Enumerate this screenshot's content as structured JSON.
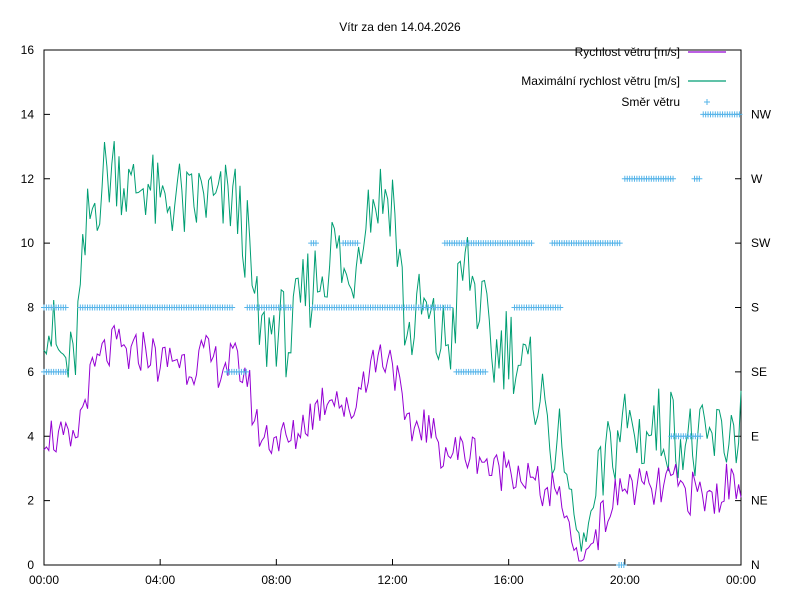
{
  "chart_data": {
    "type": "line",
    "title": "Vítr za den 14.04.2026",
    "xlim_hours": [
      0,
      24
    ],
    "x_ticks": [
      {
        "value": 0,
        "label": "00:00"
      },
      {
        "value": 4,
        "label": "04:00"
      },
      {
        "value": 8,
        "label": "08:00"
      },
      {
        "value": 12,
        "label": "12:00"
      },
      {
        "value": 16,
        "label": "16:00"
      },
      {
        "value": 20,
        "label": "20:00"
      },
      {
        "value": 24,
        "label": "00:00"
      }
    ],
    "ylim": [
      0,
      16
    ],
    "y_ticks": [
      0,
      2,
      4,
      6,
      8,
      10,
      12,
      14,
      16
    ],
    "y2_ticks": [
      {
        "value": 0,
        "label": "N"
      },
      {
        "value": 2,
        "label": "NE"
      },
      {
        "value": 4,
        "label": "E"
      },
      {
        "value": 6,
        "label": "SE"
      },
      {
        "value": 8,
        "label": "S"
      },
      {
        "value": 10,
        "label": "SW"
      },
      {
        "value": 12,
        "label": "W"
      },
      {
        "value": 14,
        "label": "NW"
      }
    ],
    "legend_position": "top-right",
    "colors": {
      "speed": "#9400d3",
      "max_speed": "#009e73",
      "direction": "#56b4e9"
    },
    "series": [
      {
        "name": "Rychlost větru [m/s]",
        "key": "speed",
        "kind": "line",
        "x": [
          0.0,
          0.5,
          1.0,
          1.5,
          2.0,
          2.5,
          3.0,
          3.5,
          4.0,
          4.5,
          5.0,
          5.5,
          6.0,
          6.5,
          7.0,
          7.25,
          7.5,
          8.0,
          8.5,
          9.0,
          9.5,
          10.0,
          10.5,
          11.0,
          11.5,
          12.0,
          12.5,
          13.0,
          13.5,
          14.0,
          14.5,
          15.0,
          15.5,
          16.0,
          16.5,
          17.0,
          17.5,
          18.0,
          18.25,
          18.5,
          19.0,
          19.5,
          20.0,
          20.5,
          21.0,
          21.5,
          22.0,
          22.5,
          23.0,
          23.5,
          24.0
        ],
        "values": [
          4.2,
          3.9,
          3.6,
          5.5,
          6.5,
          6.8,
          6.4,
          6.8,
          6.2,
          6.5,
          6.2,
          6.5,
          6.2,
          6.3,
          5.9,
          4.5,
          4.0,
          4.0,
          3.8,
          4.5,
          5.0,
          5.5,
          4.5,
          5.9,
          6.5,
          6.5,
          4.0,
          4.5,
          3.8,
          3.5,
          3.5,
          3.5,
          2.8,
          3.2,
          2.8,
          2.4,
          2.2,
          1.5,
          0.5,
          0.1,
          1.0,
          1.8,
          2.5,
          2.4,
          2.2,
          2.6,
          2.3,
          2.2,
          2.0,
          2.5,
          2.7
        ]
      },
      {
        "name": "Maximální rychlost větru [m/s]",
        "key": "max_speed",
        "kind": "line",
        "x": [
          0.0,
          0.5,
          1.0,
          1.5,
          2.0,
          2.5,
          3.0,
          3.5,
          4.0,
          4.5,
          5.0,
          5.5,
          6.0,
          6.5,
          7.0,
          7.25,
          7.5,
          8.0,
          8.5,
          9.0,
          9.5,
          10.0,
          10.5,
          11.0,
          11.5,
          12.0,
          12.5,
          13.0,
          13.5,
          14.0,
          14.5,
          15.0,
          15.5,
          16.0,
          16.5,
          17.0,
          17.5,
          18.0,
          18.25,
          18.5,
          19.0,
          19.5,
          20.0,
          20.5,
          21.0,
          21.5,
          22.0,
          22.5,
          23.0,
          23.5,
          24.0
        ],
        "values": [
          8.0,
          6.5,
          6.0,
          10.5,
          12.0,
          12.5,
          11.5,
          12.0,
          11.0,
          11.5,
          11.0,
          11.5,
          11.0,
          11.5,
          10.0,
          8.0,
          7.0,
          7.5,
          7.0,
          8.5,
          9.0,
          10.0,
          8.5,
          11.0,
          11.5,
          11.5,
          7.0,
          8.0,
          7.0,
          7.0,
          9.5,
          8.0,
          6.5,
          7.0,
          6.0,
          5.5,
          4.0,
          3.0,
          1.5,
          0.5,
          2.0,
          3.5,
          4.5,
          4.0,
          4.2,
          4.3,
          4.0,
          3.5,
          3.8,
          4.0,
          4.5
        ]
      },
      {
        "name": "Směr větru",
        "key": "direction",
        "kind": "points",
        "segments": [
          {
            "from": 0.0,
            "to": 0.75,
            "value": 6
          },
          {
            "from": 0.0,
            "to": 0.8,
            "value": 8
          },
          {
            "from": 1.25,
            "to": 6.5,
            "value": 8
          },
          {
            "from": 7.0,
            "to": 8.5,
            "value": 8
          },
          {
            "from": 9.25,
            "to": 14.0,
            "value": 8
          },
          {
            "from": 6.3,
            "to": 7.0,
            "value": 6
          },
          {
            "from": 9.2,
            "to": 9.4,
            "value": 10
          },
          {
            "from": 10.3,
            "to": 10.8,
            "value": 10
          },
          {
            "from": 13.8,
            "to": 16.8,
            "value": 10
          },
          {
            "from": 17.5,
            "to": 19.9,
            "value": 10
          },
          {
            "from": 14.2,
            "to": 15.2,
            "value": 6
          },
          {
            "from": 16.2,
            "to": 17.8,
            "value": 8
          },
          {
            "from": 20.0,
            "to": 21.7,
            "value": 12
          },
          {
            "from": 22.4,
            "to": 22.6,
            "value": 12
          },
          {
            "from": 21.6,
            "to": 22.6,
            "value": 4
          },
          {
            "from": 22.7,
            "to": 24.0,
            "value": 14
          },
          {
            "from": 19.8,
            "to": 20.0,
            "value": 0
          }
        ]
      }
    ]
  }
}
